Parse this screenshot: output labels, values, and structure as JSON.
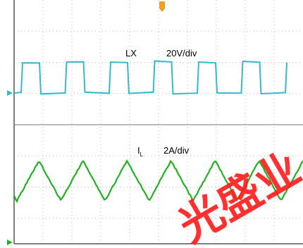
{
  "trace_1": {
    "label": "LX",
    "scale": "20V/div"
  },
  "trace_2": {
    "label": "I",
    "label_subscript": "L",
    "scale": "2A/div"
  },
  "watermark": "光盛业"
}
